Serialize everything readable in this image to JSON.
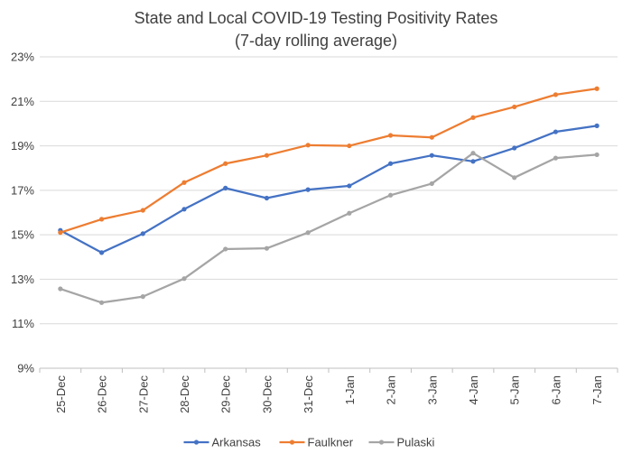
{
  "chart_data": {
    "type": "line",
    "title": "State and Local COVID-19 Testing Positivity Rates",
    "subtitle": "(7-day rolling average)",
    "xlabel": "",
    "ylabel": "",
    "categories": [
      "25-Dec",
      "26-Dec",
      "27-Dec",
      "28-Dec",
      "29-Dec",
      "30-Dec",
      "31-Dec",
      "1-Jan",
      "2-Jan",
      "3-Jan",
      "4-Jan",
      "5-Jan",
      "6-Jan",
      "7-Jan"
    ],
    "ylim": [
      9,
      23
    ],
    "yticks": [
      9,
      11,
      13,
      15,
      17,
      19,
      21,
      23
    ],
    "ytick_labels": [
      "9%",
      "11%",
      "13%",
      "15%",
      "17%",
      "19%",
      "21%",
      "23%"
    ],
    "grid": true,
    "legend_position": "bottom",
    "series": [
      {
        "name": "Arkansas",
        "color": "#4472c4",
        "values": [
          15.2,
          14.2,
          15.05,
          16.15,
          17.1,
          16.65,
          17.03,
          17.2,
          18.2,
          18.57,
          18.3,
          18.9,
          19.63,
          19.9
        ]
      },
      {
        "name": "Faulkner",
        "color": "#ed7d31",
        "values": [
          15.1,
          15.7,
          16.1,
          17.35,
          18.2,
          18.57,
          19.03,
          19.0,
          19.47,
          19.38,
          20.27,
          20.75,
          21.3,
          21.57
        ]
      },
      {
        "name": "Pulaski",
        "color": "#a5a5a5",
        "values": [
          12.57,
          11.95,
          12.22,
          13.03,
          14.36,
          14.39,
          15.1,
          15.97,
          16.78,
          17.3,
          18.67,
          17.57,
          18.45,
          18.6
        ]
      }
    ]
  }
}
